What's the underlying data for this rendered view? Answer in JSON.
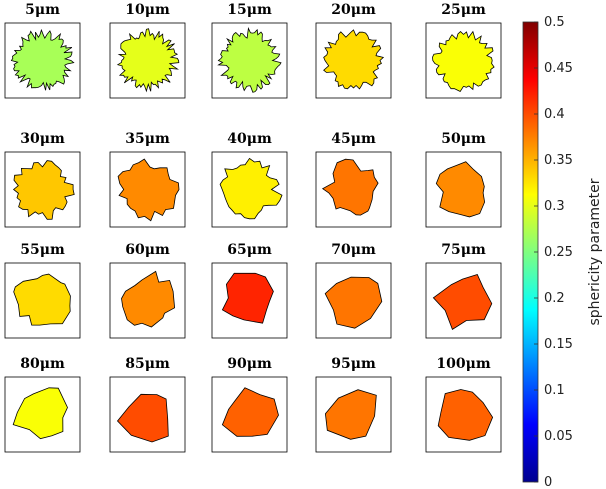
{
  "chart_data": {
    "type": "heatmap",
    "panels": [
      {
        "label": "5μm",
        "sphericity": 0.27
      },
      {
        "label": "10μm",
        "sphericity": 0.3
      },
      {
        "label": "15μm",
        "sphericity": 0.28
      },
      {
        "label": "20μm",
        "sphericity": 0.33
      },
      {
        "label": "25μm",
        "sphericity": 0.31
      },
      {
        "label": "30μm",
        "sphericity": 0.34
      },
      {
        "label": "35μm",
        "sphericity": 0.37
      },
      {
        "label": "40μm",
        "sphericity": 0.32
      },
      {
        "label": "45μm",
        "sphericity": 0.38
      },
      {
        "label": "50μm",
        "sphericity": 0.37
      },
      {
        "label": "55μm",
        "sphericity": 0.33
      },
      {
        "label": "60μm",
        "sphericity": 0.37
      },
      {
        "label": "65μm",
        "sphericity": 0.42
      },
      {
        "label": "70μm",
        "sphericity": 0.38
      },
      {
        "label": "75μm",
        "sphericity": 0.4
      },
      {
        "label": "80μm",
        "sphericity": 0.31
      },
      {
        "label": "85μm",
        "sphericity": 0.4
      },
      {
        "label": "90μm",
        "sphericity": 0.39
      },
      {
        "label": "95μm",
        "sphericity": 0.38
      },
      {
        "label": "100μm",
        "sphericity": 0.39
      }
    ],
    "colorbar": {
      "label": "sphericity parameter",
      "range": [
        0,
        0.5
      ],
      "ticks": [
        "0",
        "0.05",
        "0.1",
        "0.15",
        "0.2",
        "0.25",
        "0.3",
        "0.35",
        "0.4",
        "0.45",
        "0.5"
      ],
      "colormap": "jet"
    }
  }
}
